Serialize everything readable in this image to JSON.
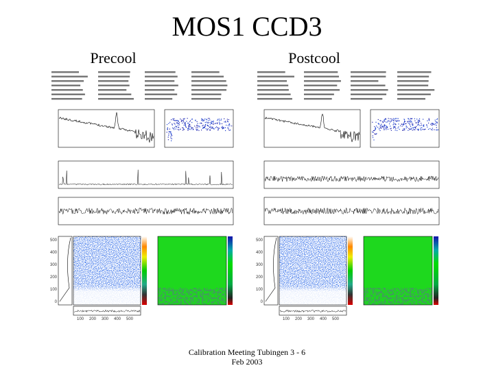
{
  "title": "MOS1 CCD3",
  "panels": [
    {
      "label": "Precool",
      "image_yticks": [
        "500",
        "400",
        "300",
        "200",
        "100",
        "0"
      ],
      "image_xticks": [
        "100",
        "200",
        "300",
        "400",
        "500"
      ]
    },
    {
      "label": "Postcool",
      "image_yticks": [
        "500",
        "400",
        "300",
        "200",
        "100",
        "0"
      ],
      "image_xticks": [
        "100",
        "200",
        "300",
        "400",
        "500"
      ]
    }
  ],
  "footer": [
    "Calibration Meeting Tubingen 3 - 6",
    "Feb 2003"
  ]
}
